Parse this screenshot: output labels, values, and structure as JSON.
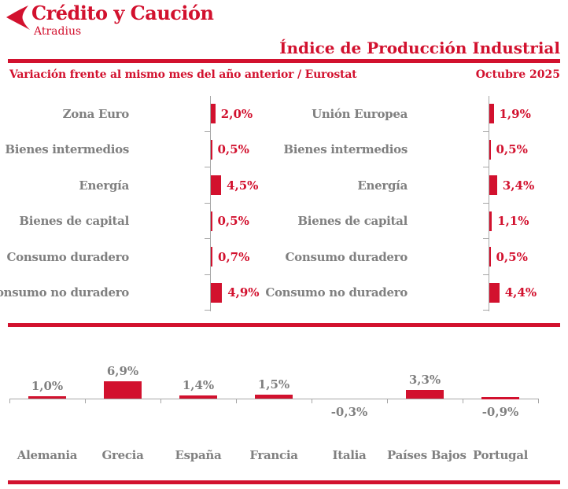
{
  "brand": {
    "name": "Crédito y Caución",
    "subbrand": "Atradius"
  },
  "header": {
    "title": "Índice de Producción Industrial",
    "subtitle": "Variación frente al mismo mes del año anterior / Eurostat",
    "period": "Octubre 2025"
  },
  "colors": {
    "accent_red": "#d2112e",
    "label_gray": "#808080",
    "axis_gray": "#a6a6a6"
  },
  "icons": {
    "logo": "bird-icon"
  },
  "chart_data": [
    {
      "type": "bar",
      "orientation": "horizontal",
      "region": "Zona Euro",
      "categories": [
        "Zona Euro",
        "Bienes intermedios",
        "Energía",
        "Bienes de capital",
        "Consumo duradero",
        "Consumo no duradero"
      ],
      "values": [
        2.0,
        0.5,
        4.5,
        0.5,
        0.7,
        4.9
      ],
      "value_labels": [
        "2,0%",
        "0,5%",
        "4,5%",
        "0,5%",
        "0,7%",
        "4,9%"
      ],
      "unit": "%",
      "xlim": [
        0,
        5.5
      ],
      "grid": false,
      "legend": "none"
    },
    {
      "type": "bar",
      "orientation": "horizontal",
      "region": "Unión Europea",
      "categories": [
        "Unión Europea",
        "Bienes intermedios",
        "Energía",
        "Bienes de capital",
        "Consumo duradero",
        "Consumo no duradero"
      ],
      "values": [
        1.9,
        0.5,
        3.4,
        1.1,
        0.5,
        4.4
      ],
      "value_labels": [
        "1,9%",
        "0,5%",
        "3,4%",
        "1,1%",
        "0,5%",
        "4,4%"
      ],
      "unit": "%",
      "xlim": [
        0,
        5.5
      ],
      "grid": false,
      "legend": "none"
    },
    {
      "type": "bar",
      "orientation": "vertical",
      "region": "Países",
      "categories": [
        "Alemania",
        "Grecia",
        "España",
        "Francia",
        "Italia",
        "Países Bajos",
        "Portugal"
      ],
      "values": [
        1.0,
        6.9,
        1.4,
        1.5,
        -0.3,
        3.3,
        -0.9
      ],
      "value_labels": [
        "1,0%",
        "6,9%",
        "1,4%",
        "1,5%",
        "-0,3%",
        "3,3%",
        "-0,9%"
      ],
      "unit": "%",
      "ylim": [
        -1.5,
        7.5
      ],
      "grid": false,
      "legend": "none"
    }
  ]
}
